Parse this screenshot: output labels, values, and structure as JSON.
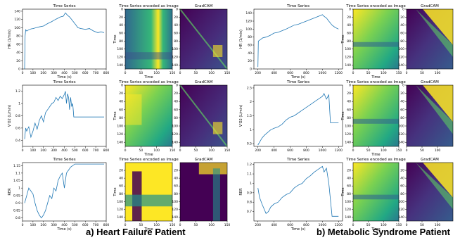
{
  "captions": {
    "a": "a) Heart Failure Patient",
    "b": "b) Metabolic Syndrome Patient"
  },
  "colors": {
    "line": "#1f77b4",
    "viridis_low": "#440154",
    "viridis_mid": "#21918c",
    "viridis_high": "#fde725"
  },
  "chart_data": [
    {
      "id": "hf-hr-ts",
      "type": "line",
      "title": "Time Series",
      "xlabel": "Time (s)",
      "ylabel": "HR (1/min)",
      "xlim": [
        0,
        800
      ],
      "ylim": [
        0,
        145
      ],
      "xticks": [
        0,
        100,
        200,
        300,
        400,
        500,
        600,
        700,
        800
      ],
      "yticks": [
        0,
        20,
        40,
        60,
        80,
        100,
        120,
        140
      ],
      "x": [
        20,
        25,
        30,
        40,
        60,
        80,
        100,
        130,
        160,
        200,
        240,
        280,
        300,
        330,
        360,
        390,
        410,
        430,
        450,
        470,
        500,
        530,
        560,
        600,
        640,
        680,
        720,
        750,
        780
      ],
      "y": [
        0,
        80,
        95,
        92,
        95,
        97,
        98,
        100,
        102,
        104,
        110,
        115,
        118,
        122,
        126,
        128,
        136,
        130,
        126,
        120,
        110,
        100,
        98,
        96,
        98,
        92,
        88,
        90,
        88
      ]
    },
    {
      "id": "hf-hr-img",
      "type": "heatmap",
      "title": "Time Series encoded as Image",
      "xlabel": "Time",
      "ylabel": "Time",
      "xticks": [
        0,
        50,
        100,
        150
      ],
      "yticks": [
        0,
        20,
        40,
        60,
        80,
        100,
        120,
        140
      ]
    },
    {
      "id": "hf-hr-gc",
      "type": "heatmap",
      "title": "GradCAM",
      "xticks": [
        0,
        50,
        100,
        150
      ],
      "yticks": [
        0,
        20,
        40,
        60,
        80,
        100,
        120,
        140
      ]
    },
    {
      "id": "ms-hr-ts",
      "type": "line",
      "title": "Time Series",
      "xlabel": "Time (s)",
      "ylabel": "HR (1/min)",
      "xlim": [
        150,
        1250
      ],
      "ylim": [
        0,
        150
      ],
      "xticks": [
        200,
        400,
        600,
        800,
        1000,
        1200
      ],
      "yticks": [
        0,
        20,
        40,
        60,
        80,
        100,
        120,
        140
      ],
      "x": [
        200,
        205,
        220,
        260,
        300,
        350,
        400,
        450,
        500,
        550,
        600,
        650,
        700,
        750,
        800,
        850,
        900,
        950,
        1000,
        1020,
        1050,
        1080,
        1120,
        1160,
        1200
      ],
      "y": [
        5,
        70,
        72,
        78,
        80,
        84,
        90,
        92,
        96,
        100,
        105,
        110,
        112,
        116,
        120,
        124,
        128,
        132,
        136,
        132,
        128,
        120,
        110,
        104,
        100
      ]
    },
    {
      "id": "ms-hr-img",
      "type": "heatmap",
      "title": "Time Series encoded as Image",
      "xlabel": "Time",
      "ylabel": "Time",
      "xticks": [
        0,
        50,
        100,
        150
      ],
      "yticks": [
        0,
        20,
        40,
        60,
        80,
        100,
        120,
        140
      ]
    },
    {
      "id": "ms-hr-gc",
      "type": "heatmap",
      "title": "GradCAM",
      "xticks": [
        0,
        50,
        100
      ],
      "yticks": [
        0,
        20,
        40,
        60,
        80,
        100,
        120,
        140
      ]
    },
    {
      "id": "hf-vo2-ts",
      "type": "line",
      "title": "Time Series",
      "xlabel": "",
      "ylabel": "V'O2 (L/min)",
      "xlim": [
        0,
        800
      ],
      "ylim": [
        0.3,
        1.3
      ],
      "xticks": [
        0,
        100,
        200,
        300,
        400,
        500,
        600,
        700,
        800
      ],
      "yticks": [
        0.4,
        0.6,
        0.8,
        1.0,
        1.2
      ],
      "x": [
        20,
        30,
        40,
        60,
        80,
        100,
        120,
        140,
        160,
        180,
        200,
        220,
        240,
        260,
        280,
        300,
        320,
        340,
        360,
        380,
        400,
        410,
        420,
        430,
        440,
        450,
        460,
        470,
        480,
        490,
        500,
        520,
        600,
        700,
        780
      ],
      "y": [
        0.42,
        0.6,
        0.55,
        0.62,
        0.45,
        0.55,
        0.68,
        0.58,
        0.72,
        0.8,
        0.7,
        0.85,
        0.9,
        0.95,
        1.0,
        1.02,
        1.1,
        1.05,
        1.12,
        1.08,
        1.15,
        1.2,
        1.0,
        1.16,
        1.1,
        0.9,
        1.1,
        0.95,
        1.0,
        0.78,
        0.78,
        0.78,
        0.78,
        0.78,
        0.78
      ]
    },
    {
      "id": "hf-vo2-img",
      "type": "heatmap",
      "title": "Time Series encoded as Image",
      "xlabel": "Time",
      "ylabel": "Time",
      "xticks": [
        0,
        50,
        100,
        150
      ],
      "yticks": [
        0,
        20,
        40,
        60,
        80,
        100,
        120,
        140
      ]
    },
    {
      "id": "hf-vo2-gc",
      "type": "heatmap",
      "title": "GradCAM",
      "xticks": [
        0,
        50,
        100,
        150
      ],
      "yticks": [
        0,
        20,
        40,
        60,
        80,
        100,
        120,
        140
      ]
    },
    {
      "id": "ms-vo2-ts",
      "type": "line",
      "title": "Time Series",
      "xlabel": "",
      "ylabel": "V'O2 (L/min)",
      "xlim": [
        150,
        1250
      ],
      "ylim": [
        0.4,
        2.6
      ],
      "xticks": [
        200,
        400,
        600,
        800,
        1000,
        1200
      ],
      "yticks": [
        0.5,
        1.0,
        1.5,
        2.0,
        2.5
      ],
      "x": [
        200,
        220,
        250,
        280,
        320,
        360,
        400,
        450,
        500,
        550,
        600,
        650,
        700,
        750,
        800,
        850,
        900,
        950,
        1000,
        1020,
        1050,
        1080,
        1100,
        1150,
        1200
      ],
      "y": [
        0.45,
        0.55,
        0.7,
        0.8,
        0.9,
        1.0,
        1.05,
        1.1,
        1.2,
        1.35,
        1.45,
        1.5,
        1.6,
        1.7,
        1.8,
        1.9,
        2.0,
        2.1,
        2.2,
        2.3,
        2.1,
        2.25,
        1.25,
        1.25,
        1.25
      ]
    },
    {
      "id": "ms-vo2-img",
      "type": "heatmap",
      "title": "Time Series encoded as Image",
      "xlabel": "Time",
      "ylabel": "Time",
      "xticks": [
        0,
        50,
        100,
        150
      ],
      "yticks": [
        0,
        20,
        40,
        60,
        80,
        100,
        120,
        140
      ]
    },
    {
      "id": "ms-vo2-gc",
      "type": "heatmap",
      "title": "GradCAM",
      "xticks": [
        0,
        50,
        100
      ],
      "yticks": [
        0,
        20,
        40,
        60,
        80,
        100,
        120,
        140
      ]
    },
    {
      "id": "hf-rer-ts",
      "type": "line",
      "title": "Time Series",
      "xlabel": "Time (s)",
      "ylabel": "RER",
      "xlim": [
        0,
        800
      ],
      "ylim": [
        0.78,
        1.17
      ],
      "xticks": [
        0,
        100,
        200,
        300,
        400,
        500,
        600,
        700,
        800
      ],
      "yticks": [
        0.8,
        0.85,
        0.9,
        0.95,
        1.0,
        1.05,
        1.1,
        1.15
      ],
      "x": [
        20,
        40,
        60,
        80,
        100,
        120,
        140,
        160,
        180,
        200,
        220,
        240,
        260,
        280,
        300,
        320,
        340,
        360,
        380,
        400,
        420,
        440,
        460,
        480,
        500,
        600,
        700,
        780
      ],
      "y": [
        0.9,
        0.95,
        1.0,
        0.98,
        0.96,
        0.9,
        0.85,
        0.82,
        0.8,
        0.82,
        0.85,
        0.9,
        0.95,
        0.93,
        1.0,
        0.98,
        1.05,
        1.08,
        1.1,
        1.0,
        1.1,
        1.12,
        1.14,
        1.15,
        1.16,
        1.16,
        1.16,
        1.16
      ]
    },
    {
      "id": "hf-rer-img",
      "type": "heatmap",
      "title": "Time Series encoded as Image",
      "xlabel": "Time",
      "ylabel": "Time",
      "xticks": [
        0,
        50,
        100,
        150
      ],
      "yticks": [
        20,
        40,
        60,
        80,
        100,
        120,
        140
      ]
    },
    {
      "id": "hf-rer-gc",
      "type": "heatmap",
      "title": "GradCAM",
      "xticks": [
        0,
        50,
        100,
        150
      ],
      "yticks": [
        20,
        40,
        60,
        80,
        100,
        120,
        140
      ]
    },
    {
      "id": "ms-rer-ts",
      "type": "line",
      "title": "Time Series",
      "xlabel": "Time (s)",
      "ylabel": "RER",
      "xlim": [
        150,
        1250
      ],
      "ylim": [
        0.6,
        1.22
      ],
      "xticks": [
        200,
        400,
        600,
        800,
        1000,
        1200
      ],
      "yticks": [
        0.7,
        0.8,
        0.9,
        1.0,
        1.1,
        1.2
      ],
      "x": [
        200,
        220,
        250,
        280,
        300,
        330,
        360,
        400,
        450,
        500,
        550,
        600,
        650,
        700,
        750,
        800,
        850,
        900,
        950,
        1000,
        1020,
        1050,
        1080,
        1120,
        1160,
        1200
      ],
      "y": [
        0.95,
        0.85,
        0.78,
        0.72,
        0.68,
        0.7,
        0.75,
        0.78,
        0.8,
        0.85,
        0.88,
        0.9,
        0.95,
        0.98,
        1.0,
        1.05,
        1.08,
        1.12,
        1.15,
        1.18,
        1.12,
        1.16,
        1.0,
        0.65,
        0.65,
        0.65
      ]
    },
    {
      "id": "ms-rer-img",
      "type": "heatmap",
      "title": "Time Series encoded as Image",
      "xlabel": "Time",
      "ylabel": "Time",
      "xticks": [
        0,
        50,
        100,
        150
      ],
      "yticks": [
        20,
        40,
        60,
        80,
        100,
        120,
        140
      ]
    },
    {
      "id": "ms-rer-gc",
      "type": "heatmap",
      "title": "GradCAM",
      "xticks": [
        0,
        50,
        100
      ],
      "yticks": [
        20,
        40,
        60,
        80,
        100,
        120,
        140
      ]
    }
  ]
}
